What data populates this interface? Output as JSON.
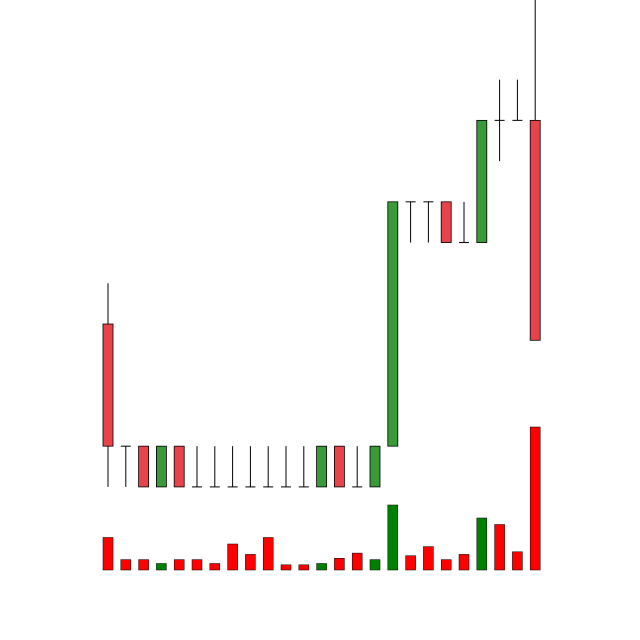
{
  "chart_data": {
    "type": "candlestick",
    "title": "",
    "xlabel": "",
    "ylabel": "",
    "axes_visible": false,
    "grid": false,
    "legend": "none",
    "colors": {
      "up_body": "#3a9a3a",
      "down_body": "#e8434b",
      "up_volume": "#008000",
      "down_volume": "#ff0000",
      "wick": "#000000",
      "background": "#ffffff"
    },
    "price_range": [
      3,
      14
    ],
    "volume_range": [
      0,
      100
    ],
    "candles": [
      {
        "open": 8.5,
        "high": 9.5,
        "low": 4.5,
        "close": 5.5,
        "volume": 25
      },
      {
        "open": 5.5,
        "high": 5.5,
        "low": 4.5,
        "close": 5.5,
        "volume": 8
      },
      {
        "open": 5.5,
        "high": 5.5,
        "low": 4.5,
        "close": 4.5,
        "volume": 8
      },
      {
        "open": 4.5,
        "high": 5.5,
        "low": 4.5,
        "close": 5.5,
        "volume": 5
      },
      {
        "open": 5.5,
        "high": 5.5,
        "low": 4.5,
        "close": 4.5,
        "volume": 8
      },
      {
        "open": 4.5,
        "high": 5.5,
        "low": 4.5,
        "close": 4.5,
        "volume": 8
      },
      {
        "open": 4.5,
        "high": 5.5,
        "low": 4.5,
        "close": 4.5,
        "volume": 5
      },
      {
        "open": 4.5,
        "high": 5.5,
        "low": 4.5,
        "close": 4.5,
        "volume": 20
      },
      {
        "open": 4.5,
        "high": 5.5,
        "low": 4.5,
        "close": 4.5,
        "volume": 12
      },
      {
        "open": 4.5,
        "high": 5.5,
        "low": 4.5,
        "close": 4.5,
        "volume": 25
      },
      {
        "open": 4.5,
        "high": 5.5,
        "low": 4.5,
        "close": 4.5,
        "volume": 4
      },
      {
        "open": 4.5,
        "high": 5.5,
        "low": 4.5,
        "close": 4.5,
        "volume": 4
      },
      {
        "open": 4.5,
        "high": 5.5,
        "low": 4.5,
        "close": 5.5,
        "volume": 5
      },
      {
        "open": 5.5,
        "high": 5.5,
        "low": 4.5,
        "close": 4.5,
        "volume": 9
      },
      {
        "open": 4.5,
        "high": 5.5,
        "low": 4.5,
        "close": 4.5,
        "volume": 13
      },
      {
        "open": 4.5,
        "high": 5.5,
        "low": 4.5,
        "close": 5.5,
        "volume": 8
      },
      {
        "open": 5.5,
        "high": 11.5,
        "low": 5.5,
        "close": 11.5,
        "volume": 50
      },
      {
        "open": 11.5,
        "high": 11.5,
        "low": 10.5,
        "close": 11.5,
        "volume": 11
      },
      {
        "open": 11.5,
        "high": 11.5,
        "low": 10.5,
        "close": 11.5,
        "volume": 18
      },
      {
        "open": 11.5,
        "high": 11.5,
        "low": 10.5,
        "close": 10.5,
        "volume": 8
      },
      {
        "open": 10.5,
        "high": 11.5,
        "low": 10.5,
        "close": 10.5,
        "volume": 12
      },
      {
        "open": 10.5,
        "high": 13.5,
        "low": 10.5,
        "close": 13.5,
        "volume": 40
      },
      {
        "open": 13.5,
        "high": 14.5,
        "low": 12.5,
        "close": 13.5,
        "volume": 35
      },
      {
        "open": 13.5,
        "high": 14.5,
        "low": 13.5,
        "close": 13.5,
        "volume": 14
      },
      {
        "open": 13.5,
        "high": 16.5,
        "low": 8.1,
        "close": 8.1,
        "volume": 110
      }
    ]
  }
}
